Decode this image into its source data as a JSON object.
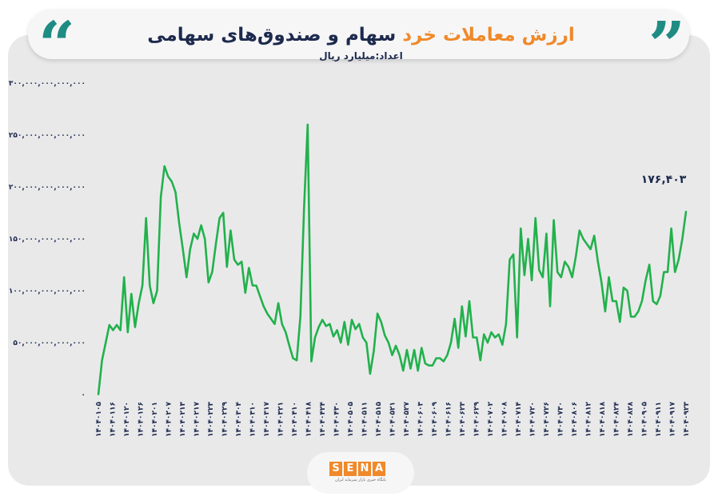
{
  "header": {
    "title_accent": "ارزش معاملات خرد",
    "title_rest": "سهام و صندوق‌های سهامی",
    "subtitle": "اعداد:میلیارد ریال"
  },
  "brand": {
    "letters": [
      "S",
      "E",
      "N",
      "A"
    ],
    "tagline": "پایگاه خبری بازار سرمایه ایران"
  },
  "colors": {
    "line": "#22b14c",
    "navy": "#1d2a4d",
    "accent": "#f0892a",
    "quote": "#1e8c82"
  },
  "chart_data": {
    "type": "line",
    "title": "ارزش معاملات خرد سهام و صندوق‌های سهامی",
    "ylabel": "اعداد:میلیارد ریال",
    "ylim": [
      0,
      300000000000000
    ],
    "y_ticks": [
      0,
      50000000000000,
      100000000000000,
      150000000000000,
      200000000000000,
      250000000000000,
      300000000000000
    ],
    "y_tick_labels": [
      "۰",
      "۵۰,۰۰۰,۰۰۰,۰۰۰,۰۰۰",
      "۱۰۰,۰۰۰,۰۰۰,۰۰۰,۰۰۰",
      "۱۵۰,۰۰۰,۰۰۰,۰۰۰,۰۰۰",
      "۲۰۰,۰۰۰,۰۰۰,۰۰۰,۰۰۰",
      "۲۵۰,۰۰۰,۰۰۰,۰۰۰,۰۰۰",
      "۳۰۰,۰۰۰,۰۰۰,۰۰۰,۰۰۰"
    ],
    "x_tick_labels": [
      "۱۴۰۴۰۱۰۵",
      "۱۴۰۴۰۱۱۶",
      "۱۴۰۴۰۱۲۰",
      "۱۴۰۴۰۱۲۶",
      "۱۴۰۴۰۲۰۱",
      "۱۴۰۴۰۲۰۷",
      "۱۴۰۴۰۲۱۳",
      "۱۴۰۴۰۲۱۷",
      "۱۴۰۴۰۲۲۳",
      "۱۴۰۴۰۲۲۹",
      "۱۴۰۴۰۳۰۴",
      "۱۴۰۴۰۳۱۰",
      "۱۴۰۴۰۳۱۷",
      "۱۴۰۴۰۳۲۱",
      "۱۴۰۴۰۴۱۰",
      "۱۴۰۴۰۴۱۸",
      "۱۴۰۴۰۴۲۴",
      "۱۴۰۴۰۴۳۰",
      "۱۴۰۴۰۵۰۵",
      "۱۴۰۴۰۵۱۱",
      "۱۴۰۴۰۵۱۵",
      "۱۴۰۴۰۵۲۱",
      "۱۴۰۴۰۵۲۷",
      "۱۴۰۴۰۶۰۳",
      "۱۴۰۴۰۶۰۹",
      "۱۴۰۴۰۶۱۶",
      "۱۴۰۴۰۶۲۳",
      "۱۴۰۴۰۶۲۹",
      "۱۴۰۴۰۷۰۲",
      "۱۴۰۴۰۷۰۸",
      "۱۴۰۴۰۷۱۴",
      "۱۴۰۴۰۷۲۰",
      "۱۴۰۴۰۷۲۶",
      "۱۴۰۴۰۷۳۰",
      "۱۴۰۴۰۸۰۶",
      "۱۴۰۴۰۸۱۲",
      "۱۴۰۴۰۸۱۸",
      "۱۴۰۴۰۸۲۴",
      "۱۴۰۴۰۸۲۸",
      "۱۴۰۴۰۹۰۵",
      "۱۴۰۴۰۹۱۱",
      "۱۴۰۴۰۹۱۷",
      "۱۴۰۴۰۹۲۳"
    ],
    "values": [
      0,
      33,
      50,
      67,
      62,
      67,
      62,
      113,
      60,
      97,
      65,
      88,
      105,
      170,
      105,
      88,
      100,
      190,
      220,
      210,
      205,
      195,
      165,
      140,
      113,
      140,
      155,
      150,
      163,
      150,
      108,
      118,
      145,
      170,
      175,
      123,
      158,
      130,
      125,
      128,
      98,
      122,
      105,
      105,
      95,
      85,
      78,
      73,
      68,
      88,
      68,
      60,
      47,
      35,
      33,
      75,
      180,
      260,
      32,
      55,
      65,
      72,
      66,
      68,
      56,
      62,
      50,
      70,
      48,
      72,
      63,
      68,
      55,
      50,
      20,
      42,
      78,
      70,
      57,
      50,
      38,
      47,
      38,
      23,
      43,
      25,
      43,
      23,
      45,
      30,
      28,
      28,
      35,
      35,
      32,
      38,
      50,
      73,
      45,
      85,
      56,
      90,
      55,
      55,
      33,
      58,
      50,
      60,
      55,
      58,
      48,
      68,
      130,
      135,
      55,
      160,
      115,
      150,
      110,
      170,
      120,
      113,
      155,
      85,
      168,
      118,
      113,
      128,
      123,
      113,
      133,
      158,
      150,
      145,
      140,
      153,
      128,
      108,
      80,
      113,
      90,
      90,
      70,
      103,
      100,
      75,
      75,
      80,
      90,
      110,
      125,
      90,
      87,
      95,
      118,
      118,
      160,
      118,
      130,
      150,
      176.403
    ],
    "values_unit_note": "values in trillions (×1,000,000,000,000) as read from axis",
    "last_value_label": "۱۷۶,۴۰۳",
    "grid": false
  }
}
